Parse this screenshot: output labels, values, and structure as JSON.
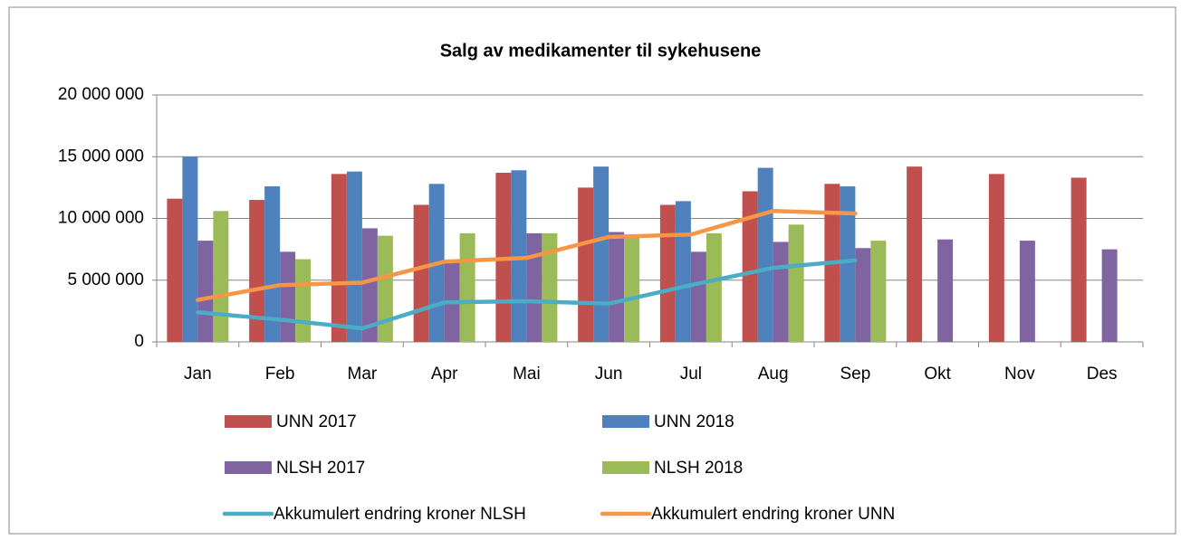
{
  "chart_data": {
    "type": "bar",
    "title": "Salg av medikamenter til sykehusene",
    "categories": [
      "Jan",
      "Feb",
      "Mar",
      "Apr",
      "Mai",
      "Jun",
      "Jul",
      "Aug",
      "Sep",
      "Okt",
      "Nov",
      "Des"
    ],
    "series": [
      {
        "name": "UNN 2017",
        "color": "#c0504d",
        "type": "bar",
        "values": [
          11600000,
          11500000,
          13600000,
          11100000,
          13700000,
          12500000,
          11100000,
          12200000,
          12800000,
          14200000,
          13600000,
          13300000
        ]
      },
      {
        "name": "UNN 2018",
        "color": "#4f81bd",
        "type": "bar",
        "values": [
          15000000,
          12600000,
          13800000,
          12800000,
          13900000,
          14200000,
          11400000,
          14100000,
          12600000,
          null,
          null,
          null
        ]
      },
      {
        "name": "NLSH 2017",
        "color": "#8064a2",
        "type": "bar",
        "values": [
          8200000,
          7300000,
          9200000,
          6500000,
          8800000,
          8900000,
          7300000,
          8100000,
          7600000,
          8300000,
          8200000,
          7500000
        ]
      },
      {
        "name": "NLSH 2018",
        "color": "#9bbb59",
        "type": "bar",
        "values": [
          10600000,
          6700000,
          8600000,
          8800000,
          8800000,
          8700000,
          8800000,
          9500000,
          8200000,
          null,
          null,
          null
        ]
      },
      {
        "name": "Akkumulert endring kroner NLSH",
        "color": "#4bacc6",
        "type": "line",
        "values": [
          2400000,
          1800000,
          1100000,
          3200000,
          3300000,
          3100000,
          4600000,
          6000000,
          6600000,
          null,
          null,
          null
        ]
      },
      {
        "name": "Akkumulert endring kroner UNN",
        "color": "#f79646",
        "type": "line",
        "values": [
          3400000,
          4600000,
          4800000,
          6500000,
          6800000,
          8500000,
          8700000,
          10600000,
          10400000,
          null,
          null,
          null
        ]
      }
    ],
    "ylim": [
      0,
      20000000
    ],
    "yticks": [
      0,
      {
        "value": 5000000,
        "label": "5 000 000"
      },
      {
        "value": 10000000,
        "label": "10 000 000"
      },
      {
        "value": 15000000,
        "label": "15 000 000"
      },
      {
        "value": 20000000,
        "label": "20 000 000"
      }
    ],
    "grid": true,
    "legend": "bottom"
  }
}
